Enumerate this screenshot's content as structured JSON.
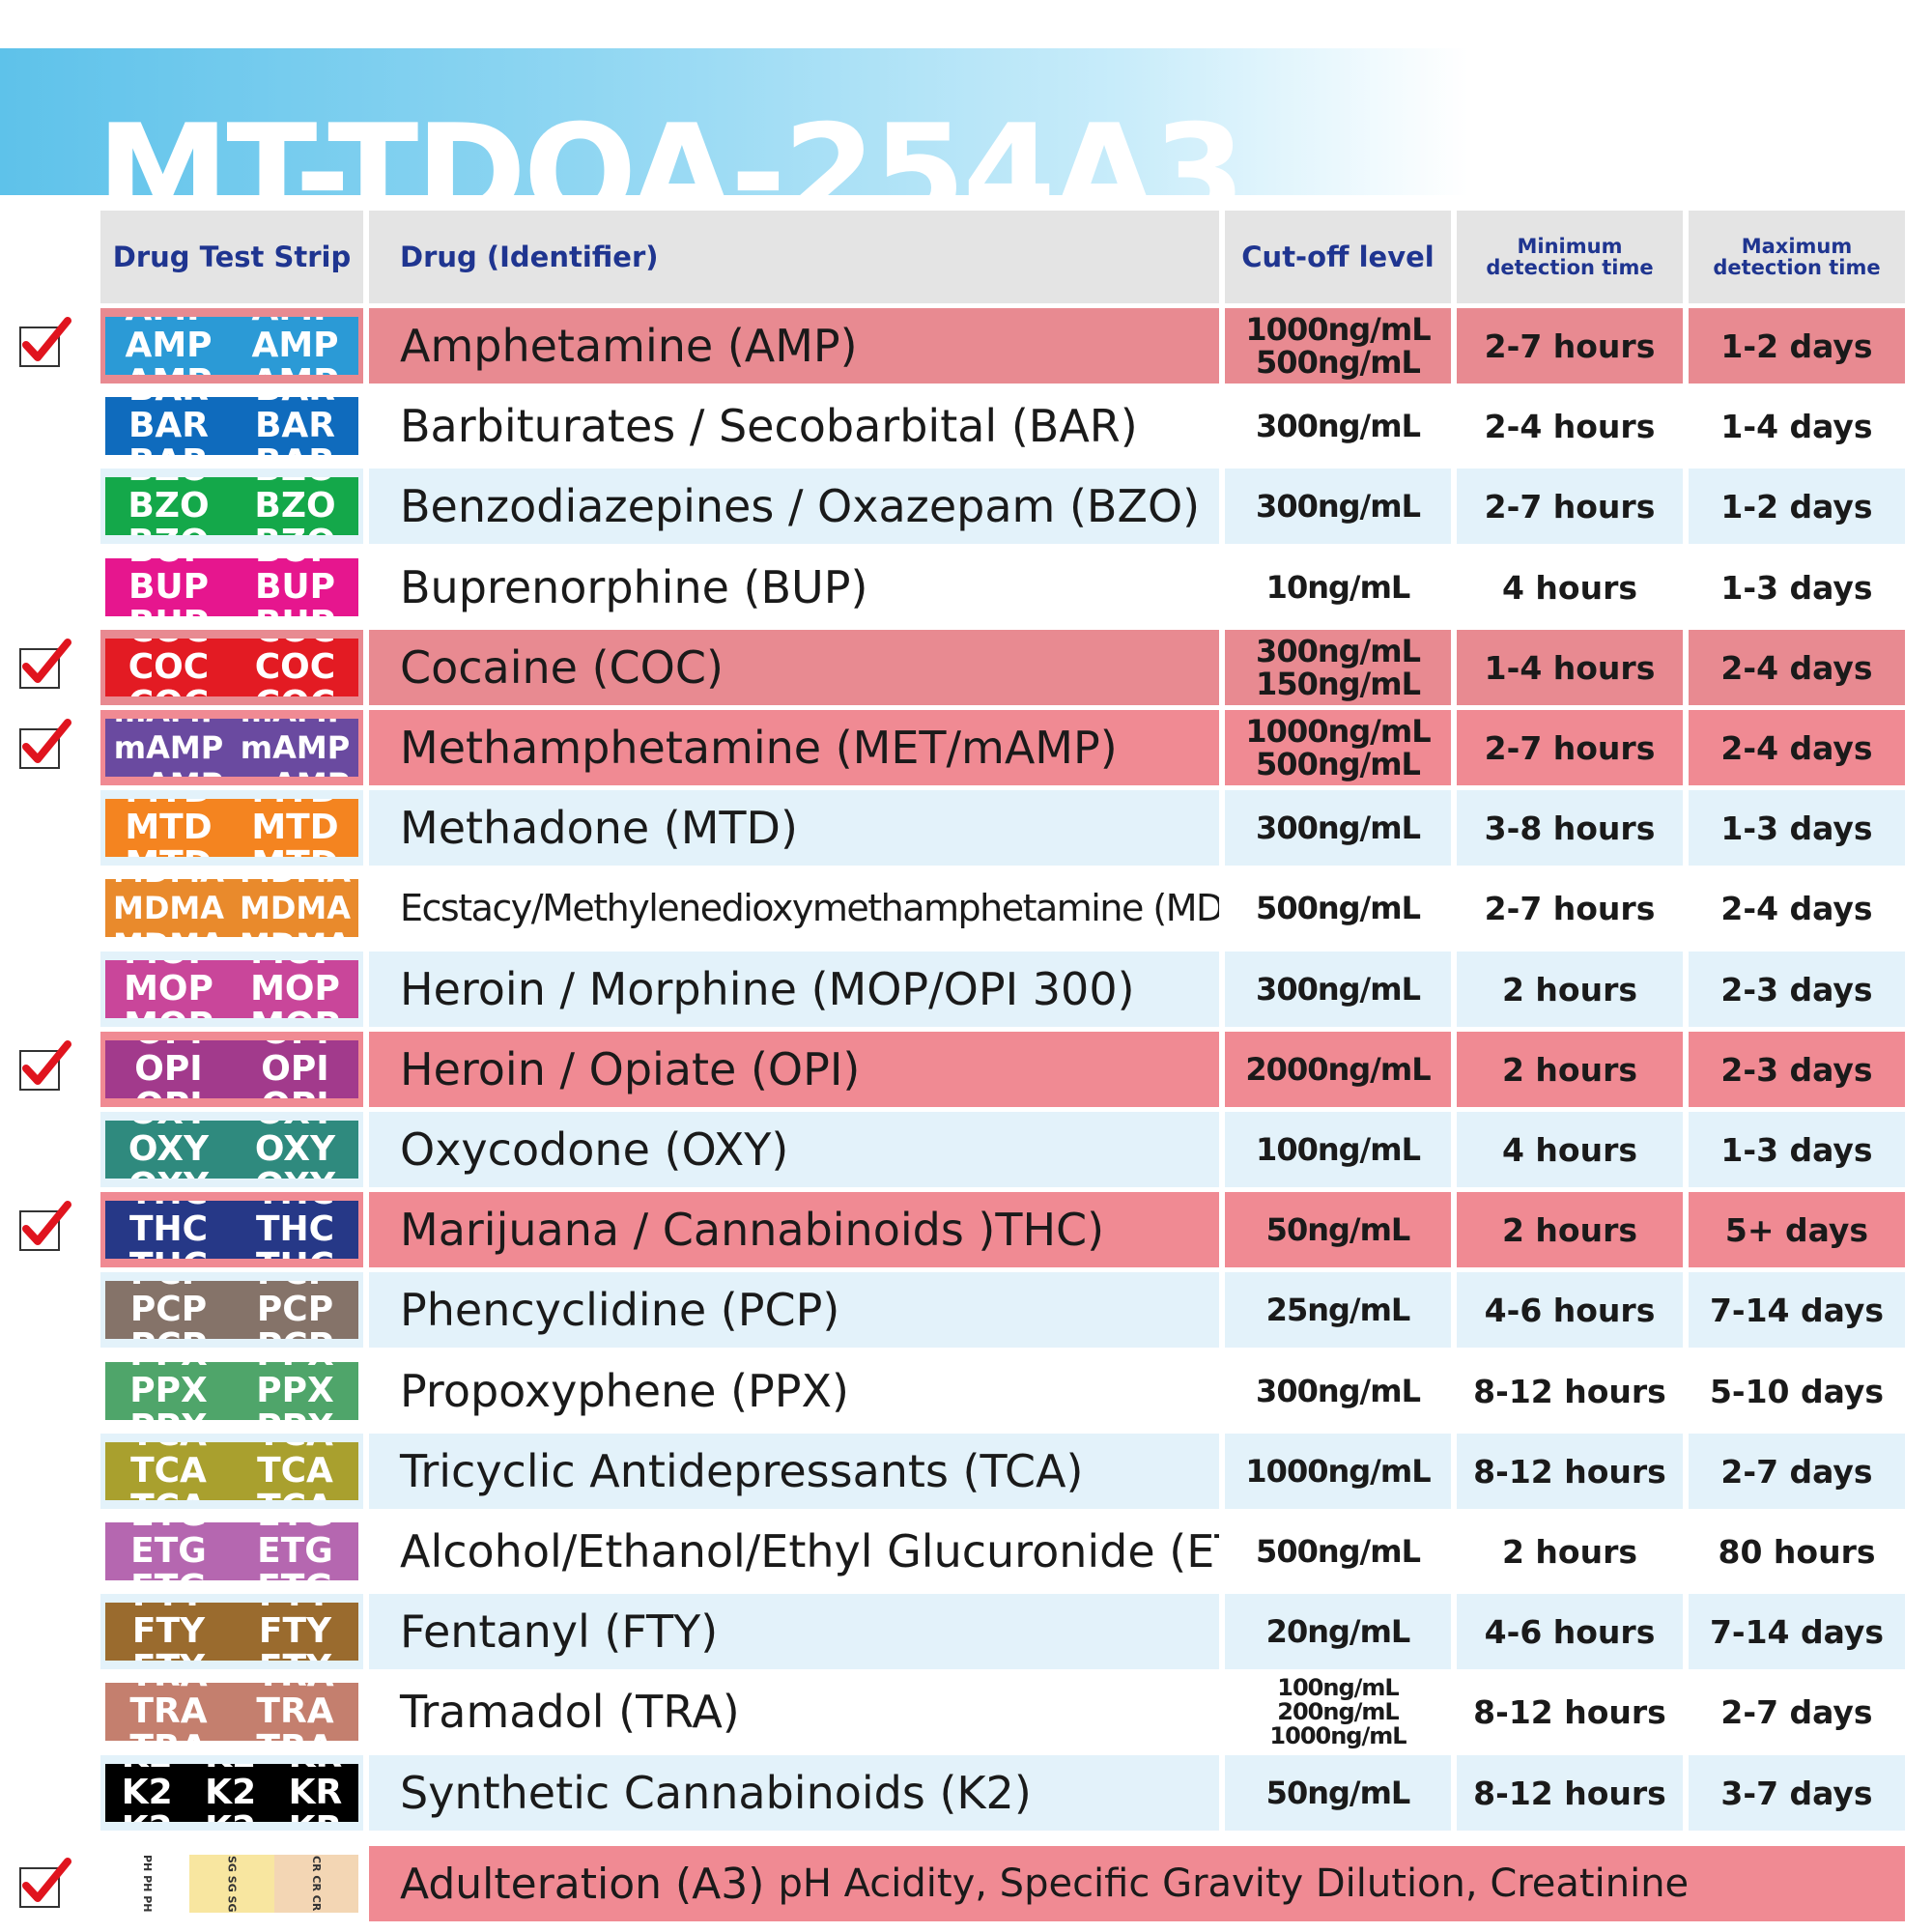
{
  "title": "MT-TDOA-254A3",
  "headers": {
    "strip": "Drug Test Strip",
    "drug": "Drug (Identifier)",
    "cutoff": "Cut-off level",
    "min_line1": "Minimum",
    "min_line2": "detection time",
    "max_line1": "Maximum",
    "max_line2": "detection time"
  },
  "rows": [
    {
      "strip_code": "AMP",
      "strip_color": "#2b9ad6",
      "drug": "Amphetamine (AMP)",
      "cutoff": [
        "1000ng/mL",
        "500ng/mL"
      ],
      "min": "2-7 hours",
      "max": "1-2 days",
      "checked": true
    },
    {
      "strip_code": "BAR",
      "strip_color": "#0f6bbd",
      "drug": "Barbiturates / Secobarbital (BAR)",
      "cutoff": [
        "300ng/mL"
      ],
      "min": "2-4 hours",
      "max": "1-4 days",
      "checked": false
    },
    {
      "strip_code": "BZO",
      "strip_color": "#14a84a",
      "drug": "Benzodiazepines / Oxazepam (BZO)",
      "cutoff": [
        "300ng/mL"
      ],
      "min": "2-7 hours",
      "max": "1-2 days",
      "checked": false
    },
    {
      "strip_code": "BUP",
      "strip_color": "#e6168e",
      "drug": "Buprenorphine (BUP)",
      "cutoff": [
        "10ng/mL"
      ],
      "min": "4 hours",
      "max": "1-3 days",
      "checked": false
    },
    {
      "strip_code": "COC",
      "strip_color": "#e31b23",
      "drug": "Cocaine (COC)",
      "cutoff": [
        "300ng/mL",
        "150ng/mL"
      ],
      "min": "1-4 hours",
      "max": "2-4 days",
      "checked": true
    },
    {
      "strip_code": "mAMP",
      "strip_color": "#6a4aa0",
      "drug": "Methamphetamine (MET/mAMP)",
      "cutoff": [
        "1000ng/mL",
        "500ng/mL"
      ],
      "min": "2-7 hours",
      "max": "2-4 days",
      "checked": true
    },
    {
      "strip_code": "MTD",
      "strip_color": "#f48420",
      "drug": "Methadone (MTD)",
      "cutoff": [
        "300ng/mL"
      ],
      "min": "3-8 hours",
      "max": "1-3 days",
      "checked": false
    },
    {
      "strip_code": "MDMA",
      "strip_color": "#e98a2c",
      "drug": "Ecstacy/Methylenedioxymethamphetamine (MDMA)",
      "cutoff": [
        "500ng/mL"
      ],
      "min": "2-7 hours",
      "max": "2-4 days",
      "checked": false
    },
    {
      "strip_code": "MOP",
      "strip_color": "#c9469a",
      "drug": "Heroin / Morphine (MOP/OPI 300)",
      "cutoff": [
        "300ng/mL"
      ],
      "min": "2 hours",
      "max": "2-3 days",
      "checked": false
    },
    {
      "strip_code": "OPI",
      "strip_color": "#a23a8c",
      "drug": "Heroin / Opiate (OPI)",
      "cutoff": [
        "2000ng/mL"
      ],
      "min": "2 hours",
      "max": "2-3 days",
      "checked": true
    },
    {
      "strip_code": "OXY",
      "strip_color": "#2f8a7e",
      "drug": "Oxycodone (OXY)",
      "cutoff": [
        "100ng/mL"
      ],
      "min": "4 hours",
      "max": "1-3 days",
      "checked": false
    },
    {
      "strip_code": "THC",
      "strip_color": "#263887",
      "drug": "Marijuana / Cannabinoids )THC)",
      "cutoff": [
        "50ng/mL"
      ],
      "min": "2 hours",
      "max": "5+ days",
      "checked": true
    },
    {
      "strip_code": "PCP",
      "strip_color": "#857369",
      "drug": "Phencyclidine (PCP)",
      "cutoff": [
        "25ng/mL"
      ],
      "min": "4-6 hours",
      "max": "7-14 days",
      "checked": false
    },
    {
      "strip_code": "PPX",
      "strip_color": "#4fa56a",
      "drug": "Propoxyphene (PPX)",
      "cutoff": [
        "300ng/mL"
      ],
      "min": "8-12 hours",
      "max": "5-10 days",
      "checked": false
    },
    {
      "strip_code": "TCA",
      "strip_color": "#a9a02e",
      "drug": "Tricyclic Antidepressants (TCA)",
      "cutoff": [
        "1000ng/mL"
      ],
      "min": "8-12 hours",
      "max": "2-7 days",
      "checked": false
    },
    {
      "strip_code": "ETG",
      "strip_color": "#b567b0",
      "drug": "Alcohol/Ethanol/Ethyl Glucuronide (ETG)",
      "cutoff": [
        "500ng/mL"
      ],
      "min": "2 hours",
      "max": "80 hours",
      "checked": false
    },
    {
      "strip_code": "FTY",
      "strip_color": "#9a6b2e",
      "drug": "Fentanyl (FTY)",
      "cutoff": [
        "20ng/mL"
      ],
      "min": "4-6 hours",
      "max": "7-14 days",
      "checked": false
    },
    {
      "strip_code": "TRA",
      "strip_color": "#c47f6e",
      "drug": "Tramadol (TRA)",
      "cutoff": [
        "100ng/mL",
        "200ng/mL",
        "1000ng/mL"
      ],
      "min": "8-12 hours",
      "max": "2-7 days",
      "checked": false
    },
    {
      "strip_code": "K2",
      "strip_code_alt": "KR",
      "strip_color": "#000000",
      "drug": "Synthetic Cannabinoids (K2)",
      "cutoff": [
        "50ng/mL"
      ],
      "min": "8-12 hours",
      "max": "3-7 days",
      "checked": false
    }
  ],
  "adulteration": {
    "label": "Adulteration (A3)",
    "detail": "pH Acidity, Specific Gravity Dilution, Creatinine",
    "segments": [
      "PH PH PH",
      "SG SG SG",
      "CR CR CR"
    ],
    "checked": true
  },
  "colors": {
    "checked_row": "#f08a93",
    "checked_row_alt": "#e88a91",
    "striped_row": "#e3f2fa",
    "plain_row": "#ffffff",
    "header_bg": "#e4e4e4",
    "header_text": "#1f3590",
    "checkmark": "#e0141e"
  }
}
